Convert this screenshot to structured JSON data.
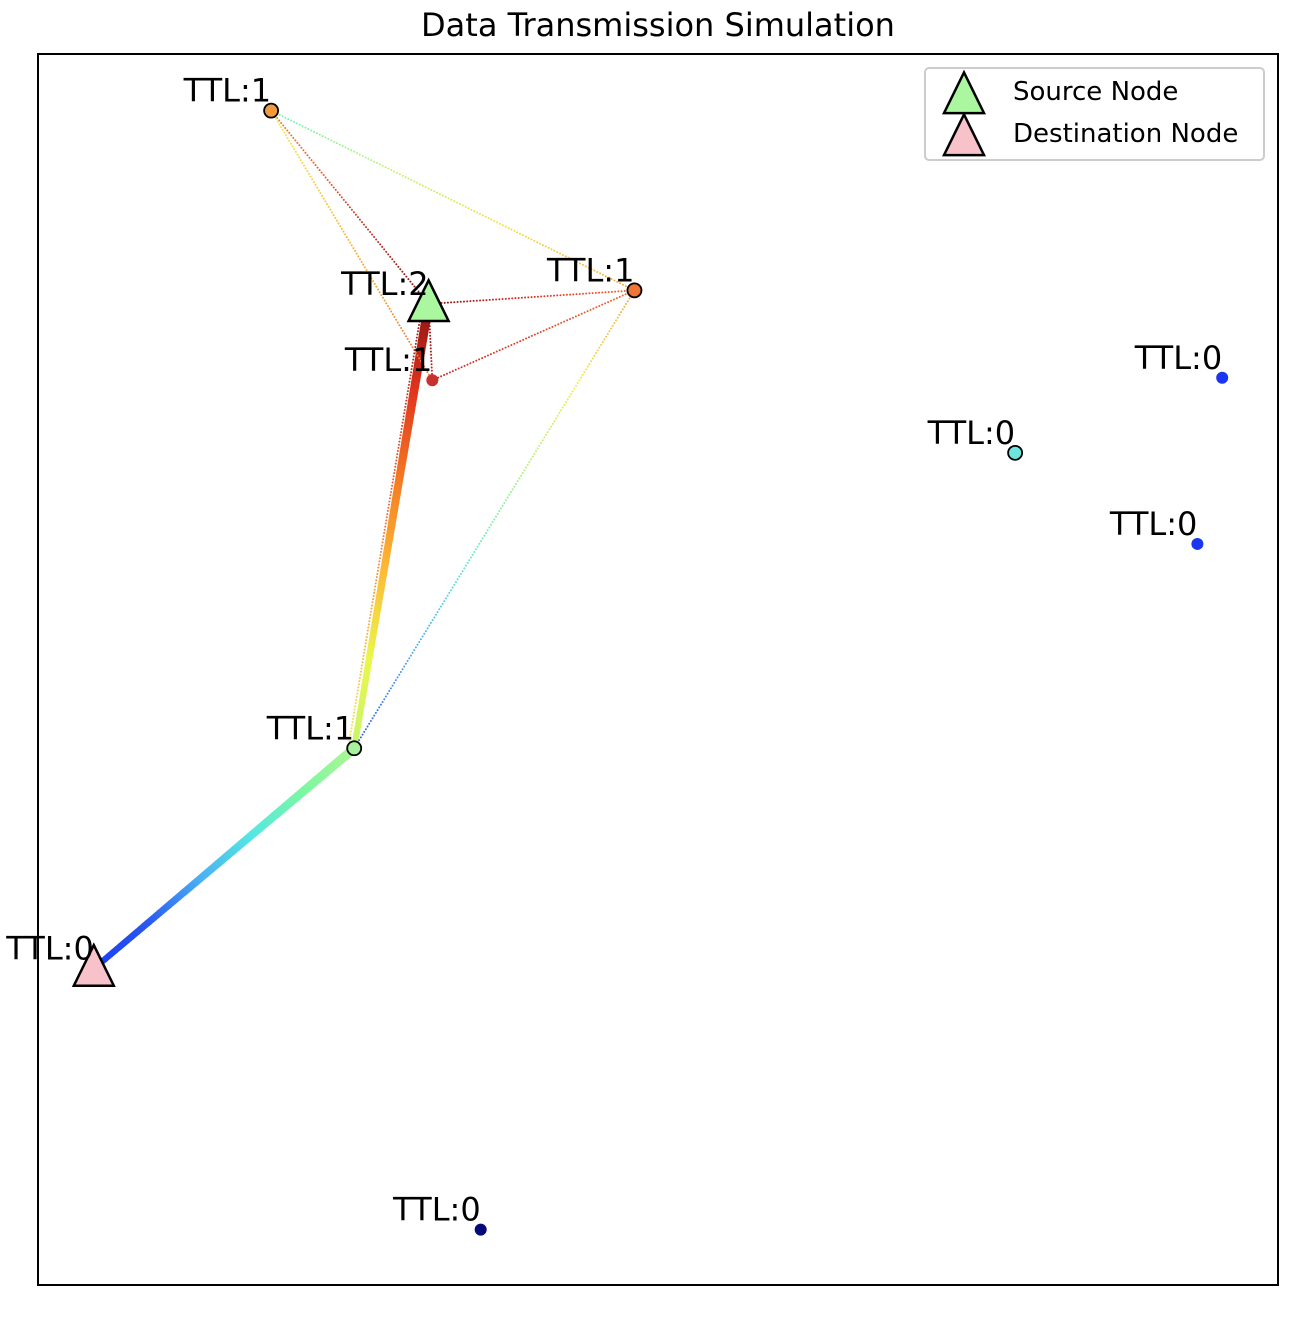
{
  "chart_data": {
    "type": "scatter",
    "title": "Data Transmission Simulation",
    "xlabel": "",
    "ylabel": "",
    "xlim": [
      0,
      1
    ],
    "ylim": [
      0,
      1
    ],
    "grid": false,
    "axis_ticks": false,
    "legend": {
      "placement": "top-right",
      "entries": [
        {
          "label": "Source Node",
          "marker": "triangle",
          "color": "#aaf79f"
        },
        {
          "label": "Destination Node",
          "marker": "triangle",
          "color": "#f7c2c9"
        }
      ]
    },
    "nodes": [
      {
        "id": "n1",
        "label": "TTL:1",
        "x": 0.188,
        "y": 0.954,
        "color": "#f39b3c",
        "edge": true
      },
      {
        "id": "source",
        "label": "TTL:2",
        "x": 0.315,
        "y": 0.797,
        "color": "#aaf79f",
        "marker": "triangle",
        "role": "source"
      },
      {
        "id": "n2",
        "label": "TTL:1",
        "x": 0.481,
        "y": 0.808,
        "color": "#ee7533",
        "edge": true
      },
      {
        "id": "n3",
        "label": "TTL:1",
        "x": 0.318,
        "y": 0.735,
        "color": "#c9302e",
        "edge": false
      },
      {
        "id": "n4",
        "label": "TTL:1",
        "x": 0.255,
        "y": 0.436,
        "color": "#a7f39d",
        "edge": true
      },
      {
        "id": "dest",
        "label": "TTL:0",
        "x": 0.045,
        "y": 0.257,
        "color": "#f7c2c9",
        "marker": "triangle",
        "role": "destination"
      },
      {
        "id": "n5",
        "label": "TTL:0",
        "x": 0.788,
        "y": 0.676,
        "color": "#6ee6e0",
        "edge": true
      },
      {
        "id": "n6",
        "label": "TTL:0",
        "x": 0.955,
        "y": 0.737,
        "color": "#1a36f0",
        "edge": false
      },
      {
        "id": "n7",
        "label": "TTL:0",
        "x": 0.935,
        "y": 0.602,
        "color": "#1a36f0",
        "edge": false
      },
      {
        "id": "n8",
        "label": "TTL:0",
        "x": 0.357,
        "y": 0.045,
        "color": "#050a7a",
        "edge": false
      }
    ],
    "links": [
      {
        "from": "source",
        "to": "n4",
        "width": 9,
        "colors": [
          "#8a1212",
          "#e0341e",
          "#f47a22",
          "#fdb936",
          "#eaf64a",
          "#c8f56b"
        ]
      },
      {
        "from": "n4",
        "to": "dest",
        "width": 9,
        "colors": [
          "#aff592",
          "#7cf7a2",
          "#55e8e2",
          "#4ab0f3",
          "#2a58f0",
          "#1a3ef2"
        ]
      },
      {
        "from": "source",
        "to": "n1",
        "width": 2,
        "colors": [
          "#7a1010",
          "#c42e22",
          "#ee5a2e",
          "#f2802e"
        ]
      },
      {
        "from": "n3",
        "to": "n1",
        "width": 2,
        "colors": [
          "#f07033",
          "#f5a03b",
          "#f8c83f",
          "#f7e94a"
        ]
      },
      {
        "from": "n2",
        "to": "n1",
        "width": 2,
        "colors": [
          "#f5a43d",
          "#f8dc3f",
          "#c3f56b",
          "#69f0c3"
        ]
      },
      {
        "from": "source",
        "to": "n2",
        "width": 2,
        "colors": [
          "#7a1010",
          "#c8281e",
          "#e8422a",
          "#f06a30"
        ]
      },
      {
        "from": "source",
        "to": "n3",
        "width": 2,
        "colors": [
          "#7a1010",
          "#a01818",
          "#c42a22"
        ]
      },
      {
        "from": "n3",
        "to": "n2",
        "width": 2,
        "colors": [
          "#c82a22",
          "#e0472a",
          "#ef6a30"
        ]
      },
      {
        "from": "source",
        "to": "n4",
        "width": 2,
        "offset": 6,
        "colors": [
          "#9a1414",
          "#e84d2a",
          "#f7a23a",
          "#f6e74a"
        ]
      },
      {
        "from": "n2",
        "to": "n4",
        "width": 2,
        "colors": [
          "#f5a33e",
          "#f2ec48",
          "#aaf37a",
          "#5ae9d6",
          "#4aa8f0",
          "#2b5cee"
        ]
      }
    ]
  }
}
